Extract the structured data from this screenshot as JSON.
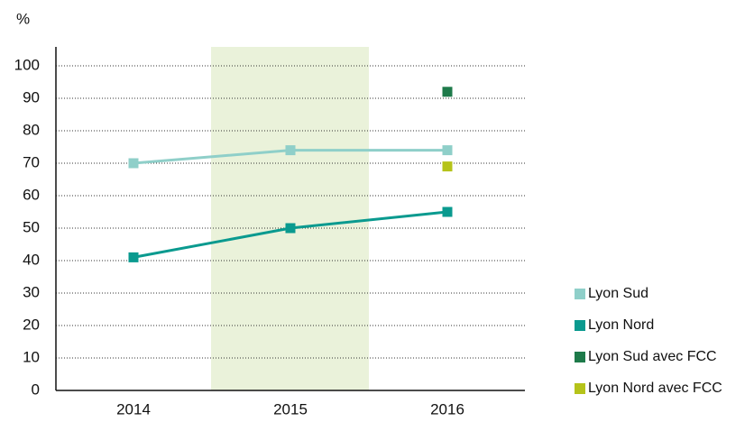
{
  "chart_data": {
    "type": "line",
    "y_label": "%",
    "categories": [
      "2014",
      "2015",
      "2016"
    ],
    "series": [
      {
        "name": "Lyon Sud",
        "color": "#8fcfc9",
        "values": [
          70,
          74,
          74
        ]
      },
      {
        "name": "Lyon Nord",
        "color": "#0a9a8f",
        "values": [
          41,
          50,
          55
        ]
      },
      {
        "name": "Lyon Sud avec FCC",
        "color": "#1e7a4a",
        "values": [
          null,
          null,
          92
        ]
      },
      {
        "name": "Lyon Nord avec FCC",
        "color": "#b5c31a",
        "values": [
          null,
          null,
          69
        ]
      }
    ],
    "ylim": [
      0,
      100
    ],
    "yticks": [
      0,
      10,
      20,
      30,
      40,
      50,
      60,
      70,
      80,
      90,
      100
    ],
    "grid": true,
    "legend": "lower right"
  }
}
